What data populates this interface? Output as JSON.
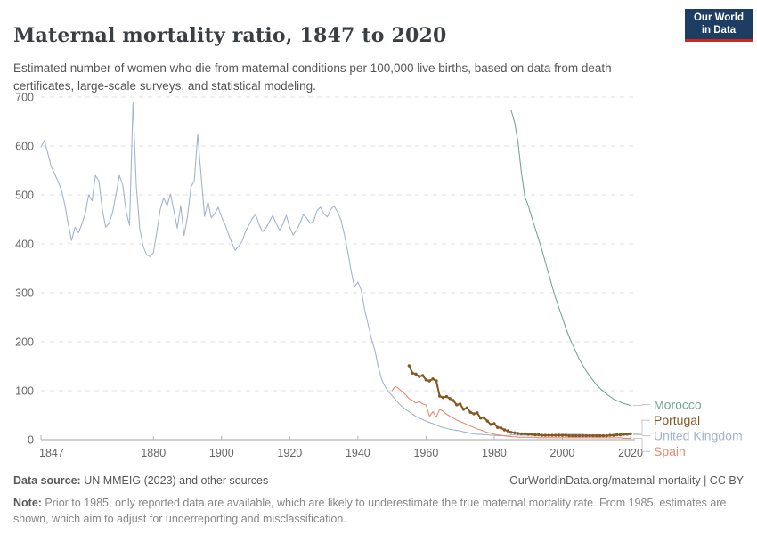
{
  "header": {
    "title": "Maternal mortality ratio, 1847 to 2020",
    "subtitle": "Estimated number of women who die from maternal conditions per 100,000 live births, based on data from death certificates, large-scale surveys, and statistical modeling.",
    "logo": {
      "line1": "Our World",
      "line2": "in Data",
      "bg": "#1d3d63",
      "accent": "#d0281d"
    }
  },
  "footer": {
    "datasource_label": "Data source:",
    "datasource_value": " UN MMEIG (2023) and other sources",
    "link": "OurWorldinData.org/maternal-mortality | CC BY",
    "note_label": "Note:",
    "note_value": " Prior to 1985, only reported data are available, which are likely to underestimate the true maternal mortality rate. From 1985, estimates are shown, which aim to adjust for underreporting and misclassification."
  },
  "chart_data": {
    "type": "line",
    "title": "Maternal mortality ratio, 1847 to 2020",
    "xlabel": "",
    "ylabel": "",
    "xlim": [
      1847,
      2023
    ],
    "ylim": [
      0,
      700
    ],
    "x_ticks": [
      1847,
      1880,
      1900,
      1920,
      1940,
      1960,
      1980,
      2000,
      2020
    ],
    "y_ticks": [
      0,
      100,
      200,
      300,
      400,
      500,
      600,
      700
    ],
    "grid": "horizontal-dashed",
    "legend_position": "right-of-line-ends",
    "style": {
      "grid_color": "#e2e2e2",
      "axis_color": "#a3a3a3",
      "tick_color": "#b3b3b3",
      "tick_label_color": "#666666",
      "connector_color": "#bbbbbb"
    },
    "series": [
      {
        "name": "Morocco",
        "color": "#73a793",
        "marker": false,
        "start_year": 1985,
        "values": [
          672,
          648,
          607,
          545,
          496,
          478,
          455,
          432,
          410,
          388,
          363,
          338,
          313,
          290,
          269,
          249,
          228,
          210,
          194,
          179,
          164,
          152,
          140,
          130,
          121,
          112,
          105,
          99,
          93,
          88,
          83,
          80,
          77,
          74,
          72,
          70
        ]
      },
      {
        "name": "Portugal",
        "color": "#855723",
        "marker": true,
        "start_year": 1955,
        "values": [
          151,
          136,
          134,
          129,
          131,
          122,
          120,
          124,
          120,
          89,
          86,
          88,
          84,
          80,
          71,
          73,
          62,
          65,
          56,
          53,
          55,
          44,
          45,
          38,
          31,
          33,
          25,
          24,
          20,
          18,
          15,
          14,
          13,
          12,
          12,
          11,
          11,
          10,
          10,
          9,
          9,
          9,
          9,
          9,
          9,
          9,
          9,
          8,
          8,
          8,
          8,
          8,
          8,
          8,
          8,
          8,
          8,
          8,
          8,
          9,
          9,
          10,
          10,
          11,
          11,
          12
        ]
      },
      {
        "name": "United Kingdom",
        "color": "#a4b3d3",
        "marker": false,
        "start_year": 1847,
        "values": [
          598,
          611,
          585,
          558,
          543,
          528,
          510,
          480,
          440,
          407,
          434,
          423,
          440,
          462,
          500,
          488,
          540,
          528,
          470,
          434,
          442,
          465,
          500,
          540,
          520,
          465,
          438,
          688,
          517,
          430,
          395,
          378,
          374,
          382,
          425,
          470,
          494,
          478,
          502,
          468,
          432,
          478,
          417,
          455,
          516,
          529,
          624,
          540,
          456,
          486,
          453,
          462,
          475,
          455,
          440,
          420,
          402,
          387,
          395,
          405,
          425,
          438,
          452,
          460,
          440,
          425,
          432,
          445,
          458,
          442,
          428,
          440,
          458,
          434,
          418,
          428,
          442,
          460,
          452,
          442,
          446,
          468,
          475,
          462,
          455,
          470,
          478,
          465,
          450,
          420,
          385,
          345,
          312,
          322,
          305,
          265,
          235,
          205,
          182,
          148,
          122,
          108,
          98,
          90,
          82,
          74,
          67,
          62,
          57,
          52,
          48,
          44,
          41,
          38,
          35,
          33,
          30,
          27,
          25,
          23,
          21,
          20,
          19,
          18,
          16,
          15,
          13,
          12,
          11,
          11,
          10,
          10,
          9,
          9,
          8,
          8,
          8,
          8,
          10,
          10,
          9,
          9,
          9,
          9,
          9,
          9,
          9,
          10,
          10,
          10,
          10,
          10,
          11,
          11,
          11,
          11,
          11,
          11,
          11,
          11,
          10,
          10,
          10,
          10,
          10,
          9,
          9,
          9,
          9,
          9,
          9,
          9,
          10,
          10
        ]
      },
      {
        "name": "Spain",
        "color": "#e28d70",
        "marker": false,
        "start_year": 1950,
        "values": [
          100,
          109,
          104,
          98,
          92,
          84,
          80,
          75,
          78,
          73,
          71,
          48,
          57,
          46,
          62,
          58,
          52,
          48,
          44,
          40,
          37,
          34,
          31,
          28,
          25,
          22,
          20,
          17,
          15,
          13,
          11,
          10,
          9,
          8,
          7,
          6,
          6,
          5,
          5,
          5,
          5,
          5,
          5,
          4,
          4,
          4,
          4,
          4,
          4,
          4,
          4,
          4,
          4,
          4,
          4,
          4,
          4,
          4,
          4,
          4,
          4,
          4,
          4,
          4,
          4,
          4,
          4,
          4,
          3,
          3,
          3
        ]
      }
    ]
  }
}
